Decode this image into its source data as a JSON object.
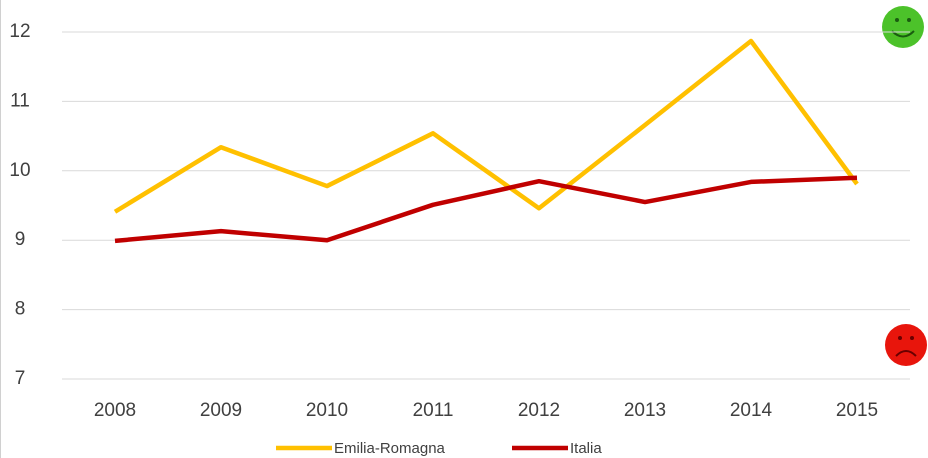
{
  "chart_data": {
    "type": "line",
    "categories": [
      "2008",
      "2009",
      "2010",
      "2011",
      "2012",
      "2013",
      "2014",
      "2015"
    ],
    "series": [
      {
        "name": "Emilia-Romagna",
        "color": "#ffc000",
        "values": [
          9.41,
          10.34,
          9.78,
          10.54,
          9.46,
          10.66,
          11.87,
          9.81
        ]
      },
      {
        "name": "Italia",
        "color": "#c00000",
        "values": [
          8.99,
          9.13,
          9.0,
          9.51,
          9.85,
          9.55,
          9.84,
          9.9
        ]
      }
    ],
    "ylim": [
      7,
      12
    ],
    "yticks": [
      7,
      8,
      9,
      10,
      11,
      12
    ],
    "grid": true,
    "legend": "bottom"
  }
}
